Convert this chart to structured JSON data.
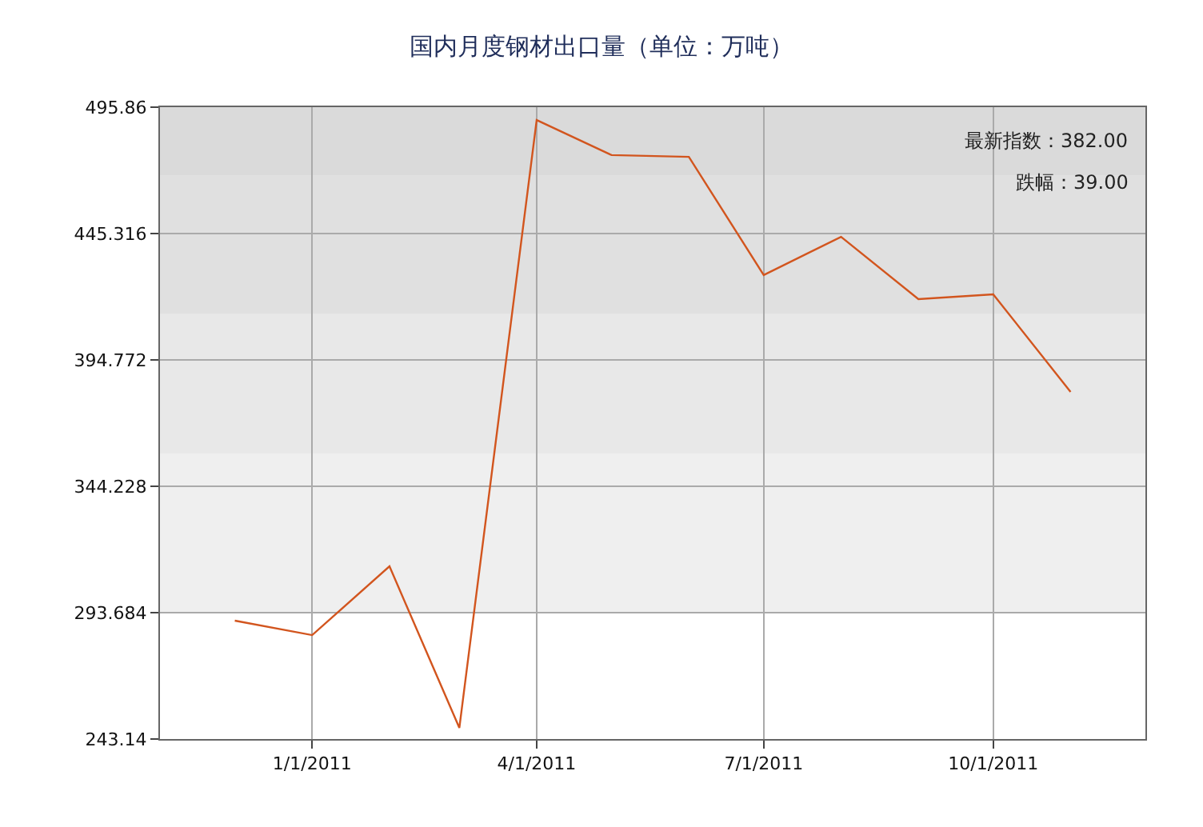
{
  "chart_data": {
    "type": "line",
    "title": "国内月度钢材出口量（单位：万吨）",
    "x": [
      "2010-12-01",
      "2011-01-01",
      "2011-02-01",
      "2011-03-01",
      "2011-04-01",
      "2011-05-01",
      "2011-06-01",
      "2011-07-01",
      "2011-08-01",
      "2011-09-01",
      "2011-10-01",
      "2011-11-01"
    ],
    "series": [
      {
        "color": "#d2551e",
        "values": [
          290.5,
          284.7,
          312.2,
          247.6,
          490.7,
          476.7,
          476.0,
          428.7,
          444.0,
          419.1,
          421.0,
          382.0
        ]
      }
    ],
    "xlim": [
      "2010-11-01",
      "2011-12-01"
    ],
    "xticks": [
      {
        "value": "2011-01-01",
        "label": "1/1/2011"
      },
      {
        "value": "2011-04-01",
        "label": "4/1/2011"
      },
      {
        "value": "2011-07-01",
        "label": "7/1/2011"
      },
      {
        "value": "2011-10-01",
        "label": "10/1/2011"
      }
    ],
    "ylim": [
      243.14,
      495.86
    ],
    "yticks": [
      243.14,
      293.684,
      344.228,
      394.772,
      445.316,
      495.86
    ],
    "bands": [
      {
        "axis": "y",
        "from": 293.684,
        "to": 357.2,
        "color": "#efefef"
      },
      {
        "axis": "y",
        "from": 357.2,
        "to": 413.1,
        "color": "#e8e8e8"
      },
      {
        "axis": "y",
        "from": 413.1,
        "to": 468.4,
        "color": "#e0e0e0"
      },
      {
        "axis": "y",
        "from": 468.4,
        "to": 495.86,
        "color": "#dadada"
      }
    ],
    "annotations": [
      "最新指数：382.00",
      "跌幅：39.00"
    ],
    "grid": true,
    "marker": "none",
    "line_style": "solid"
  }
}
